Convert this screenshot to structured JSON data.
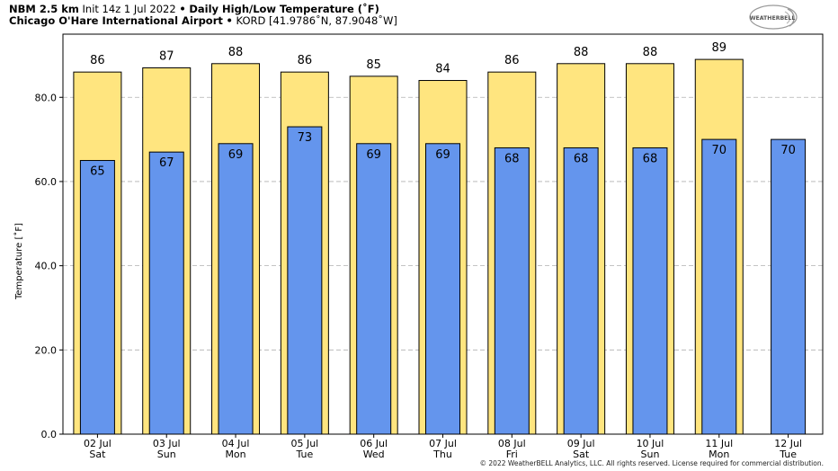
{
  "header": {
    "model": "NBM 2.5 km",
    "init": "Init 14z 1 Jul 2022",
    "sep1": "•",
    "title": "Daily High/Low Temperature (˚F)",
    "location": "Chicago O'Hare International Airport",
    "sep2": "•",
    "station": "KORD [41.9786˚N, 87.9048˚W]"
  },
  "logo_text": "WEATHERBELL",
  "copyright": "© 2022 WeatherBELL Analytics, LLC. All rights reserved. License required for commercial distribution.",
  "colors": {
    "high": "#FFE57F",
    "low": "#6495ED",
    "outline": "#000000",
    "grid": "#b0b0b0"
  },
  "chart_data": {
    "type": "bar",
    "title": "Daily High/Low Temperature (˚F)",
    "ylabel": "Temperature [˚F]",
    "ylim": [
      0,
      95
    ],
    "yticks": [
      "0.0",
      "20.0",
      "40.0",
      "60.0",
      "80.0"
    ],
    "grid": true,
    "categories": [
      [
        "02 Jul",
        "Sat"
      ],
      [
        "03 Jul",
        "Sun"
      ],
      [
        "04 Jul",
        "Mon"
      ],
      [
        "05 Jul",
        "Tue"
      ],
      [
        "06 Jul",
        "Wed"
      ],
      [
        "07 Jul",
        "Thu"
      ],
      [
        "08 Jul",
        "Fri"
      ],
      [
        "09 Jul",
        "Sat"
      ],
      [
        "10 Jul",
        "Sun"
      ],
      [
        "11 Jul",
        "Mon"
      ],
      [
        "12 Jul",
        "Tue"
      ]
    ],
    "series": [
      {
        "role": "high",
        "values": [
          86,
          87,
          88,
          86,
          85,
          84,
          86,
          88,
          88,
          89,
          null
        ],
        "labels": [
          "86",
          "87",
          "88",
          "86",
          "85",
          "84",
          "86",
          "88",
          "88",
          "89",
          ""
        ]
      },
      {
        "role": "low",
        "values": [
          65,
          67,
          69,
          73,
          69,
          69,
          68,
          68,
          68,
          70,
          70
        ],
        "labels": [
          "65",
          "67",
          "69",
          "73",
          "69",
          "69",
          "68",
          "68",
          "68",
          "70",
          "70"
        ]
      }
    ]
  }
}
